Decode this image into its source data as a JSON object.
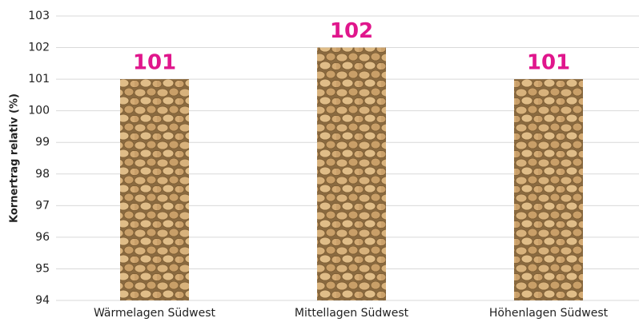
{
  "chart_data": {
    "type": "bar",
    "y_label": "Kornertrag relativ (%)",
    "categories": [
      "Wärmelagen Südwest",
      "Mittellagen Südwest",
      "Höhenlagen Südwest"
    ],
    "values": [
      101,
      102,
      101
    ],
    "color": "#c59a63",
    "label_color": "#e0168c",
    "ylim": [
      94,
      103
    ],
    "yticks": [
      94,
      95,
      96,
      97,
      98,
      99,
      100,
      101,
      102,
      103
    ],
    "grid": true
  }
}
